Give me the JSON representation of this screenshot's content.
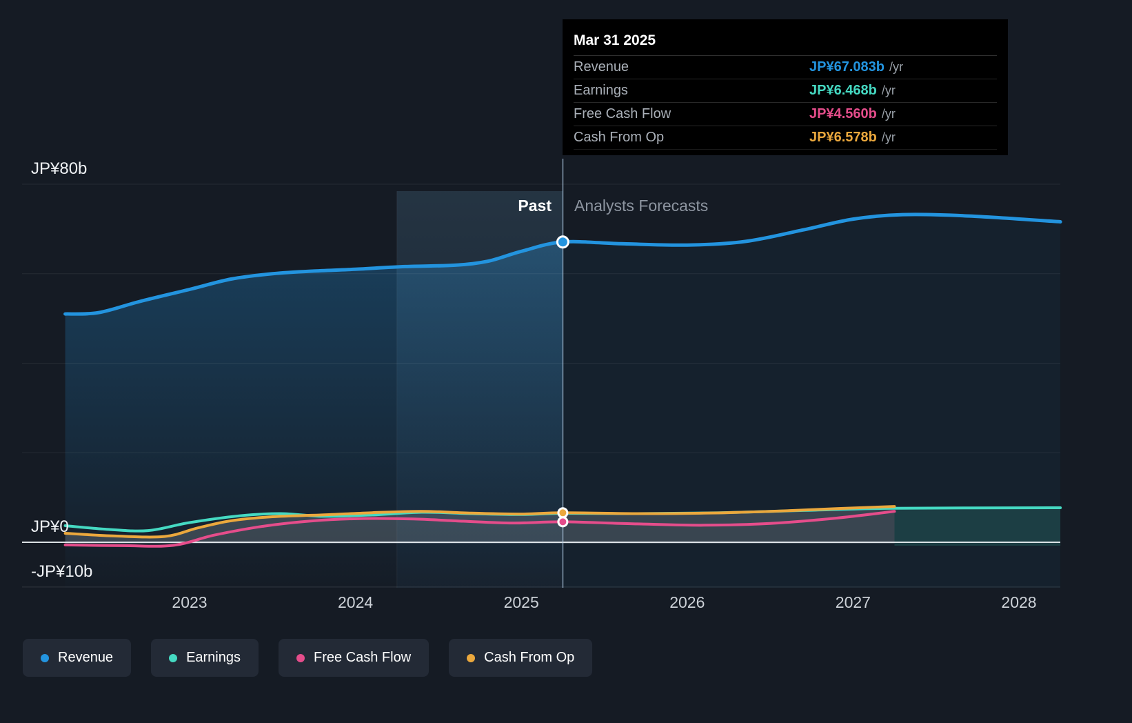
{
  "tooltip": {
    "date": "Mar 31 2025",
    "rows": [
      {
        "label": "Revenue",
        "value": "JP¥67.083b",
        "suffix": "/yr",
        "color": "#2394df"
      },
      {
        "label": "Earnings",
        "value": "JP¥6.468b",
        "suffix": "/yr",
        "color": "#45d9c2"
      },
      {
        "label": "Free Cash Flow",
        "value": "JP¥4.560b",
        "suffix": "/yr",
        "color": "#e54d8b"
      },
      {
        "label": "Cash From Op",
        "value": "JP¥6.578b",
        "suffix": "/yr",
        "color": "#eba83d"
      }
    ]
  },
  "labels": {
    "past": "Past",
    "forecast": "Analysts Forecasts"
  },
  "axes": {
    "y_ticks": [
      {
        "label": "JP¥80b",
        "value": 80
      },
      {
        "label": "JP¥0",
        "value": 0
      },
      {
        "label": "-JP¥10b",
        "value": -10
      }
    ],
    "x_ticks": [
      "2023",
      "2024",
      "2025",
      "2026",
      "2027",
      "2028"
    ]
  },
  "legend": [
    {
      "label": "Revenue",
      "color": "#2394df"
    },
    {
      "label": "Earnings",
      "color": "#45d9c2"
    },
    {
      "label": "Free Cash Flow",
      "color": "#e54d8b"
    },
    {
      "label": "Cash From Op",
      "color": "#eba83d"
    }
  ],
  "chart_data": {
    "type": "line",
    "units": "JP¥ billions per year",
    "ylim": [
      -10,
      80
    ],
    "xlim": [
      2022.0,
      2028.25
    ],
    "gridline_values": [
      80,
      60,
      40,
      20,
      0,
      -10
    ],
    "divider_x": 2025.25,
    "hover_band": [
      2024.25,
      2025.25
    ],
    "legend_position": "bottom",
    "series": [
      {
        "name": "Revenue",
        "color": "#2394df",
        "width": 5,
        "forecast_start": 2025.25,
        "points": [
          [
            2022.25,
            51.0
          ],
          [
            2022.45,
            51.3
          ],
          [
            2022.7,
            53.8
          ],
          [
            2023.0,
            56.5
          ],
          [
            2023.25,
            58.8
          ],
          [
            2023.5,
            60.0
          ],
          [
            2023.75,
            60.6
          ],
          [
            2024.0,
            61.0
          ],
          [
            2024.3,
            61.6
          ],
          [
            2024.6,
            61.9
          ],
          [
            2024.8,
            62.8
          ],
          [
            2025.0,
            65.0
          ],
          [
            2025.25,
            67.083
          ],
          [
            2025.6,
            66.7
          ],
          [
            2026.0,
            66.4
          ],
          [
            2026.35,
            67.2
          ],
          [
            2026.7,
            69.8
          ],
          [
            2027.0,
            72.2
          ],
          [
            2027.3,
            73.2
          ],
          [
            2027.7,
            72.9
          ],
          [
            2028.25,
            71.6
          ]
        ]
      },
      {
        "name": "Earnings",
        "color": "#45d9c2",
        "width": 4,
        "forecast_start": 2025.25,
        "points": [
          [
            2022.25,
            3.7
          ],
          [
            2022.5,
            2.9
          ],
          [
            2022.75,
            2.6
          ],
          [
            2023.0,
            4.4
          ],
          [
            2023.3,
            5.9
          ],
          [
            2023.55,
            6.4
          ],
          [
            2023.8,
            5.8
          ],
          [
            2024.1,
            6.1
          ],
          [
            2024.4,
            6.7
          ],
          [
            2024.7,
            6.4
          ],
          [
            2025.0,
            6.2
          ],
          [
            2025.25,
            6.468
          ],
          [
            2025.7,
            6.4
          ],
          [
            2026.2,
            6.6
          ],
          [
            2026.7,
            7.1
          ],
          [
            2027.25,
            7.6
          ],
          [
            2028.25,
            7.7
          ]
        ]
      },
      {
        "name": "Free Cash Flow",
        "color": "#e54d8b",
        "width": 4,
        "forecast_start": 2025.25,
        "points": [
          [
            2022.25,
            -0.6
          ],
          [
            2022.6,
            -0.75
          ],
          [
            2022.9,
            -0.7
          ],
          [
            2023.15,
            1.6
          ],
          [
            2023.45,
            3.6
          ],
          [
            2023.75,
            4.8
          ],
          [
            2024.05,
            5.3
          ],
          [
            2024.35,
            5.2
          ],
          [
            2024.65,
            4.7
          ],
          [
            2024.95,
            4.3
          ],
          [
            2025.25,
            4.56
          ],
          [
            2025.7,
            4.1
          ],
          [
            2026.1,
            3.8
          ],
          [
            2026.5,
            4.2
          ],
          [
            2026.9,
            5.4
          ],
          [
            2027.25,
            6.9
          ]
        ]
      },
      {
        "name": "Cash From Op",
        "color": "#eba83d",
        "width": 4,
        "forecast_start": 2025.25,
        "points": [
          [
            2022.25,
            2.0
          ],
          [
            2022.55,
            1.4
          ],
          [
            2022.85,
            1.3
          ],
          [
            2023.05,
            3.2
          ],
          [
            2023.25,
            4.8
          ],
          [
            2023.5,
            5.7
          ],
          [
            2023.8,
            6.1
          ],
          [
            2024.1,
            6.6
          ],
          [
            2024.4,
            6.9
          ],
          [
            2024.7,
            6.5
          ],
          [
            2025.0,
            6.3
          ],
          [
            2025.25,
            6.578
          ],
          [
            2025.7,
            6.4
          ],
          [
            2026.1,
            6.5
          ],
          [
            2026.5,
            6.9
          ],
          [
            2026.9,
            7.5
          ],
          [
            2027.25,
            8.0
          ]
        ]
      }
    ],
    "markers_at_x": 2025.25,
    "marker_series": [
      "Revenue",
      "Cash From Op",
      "Free Cash Flow"
    ]
  }
}
